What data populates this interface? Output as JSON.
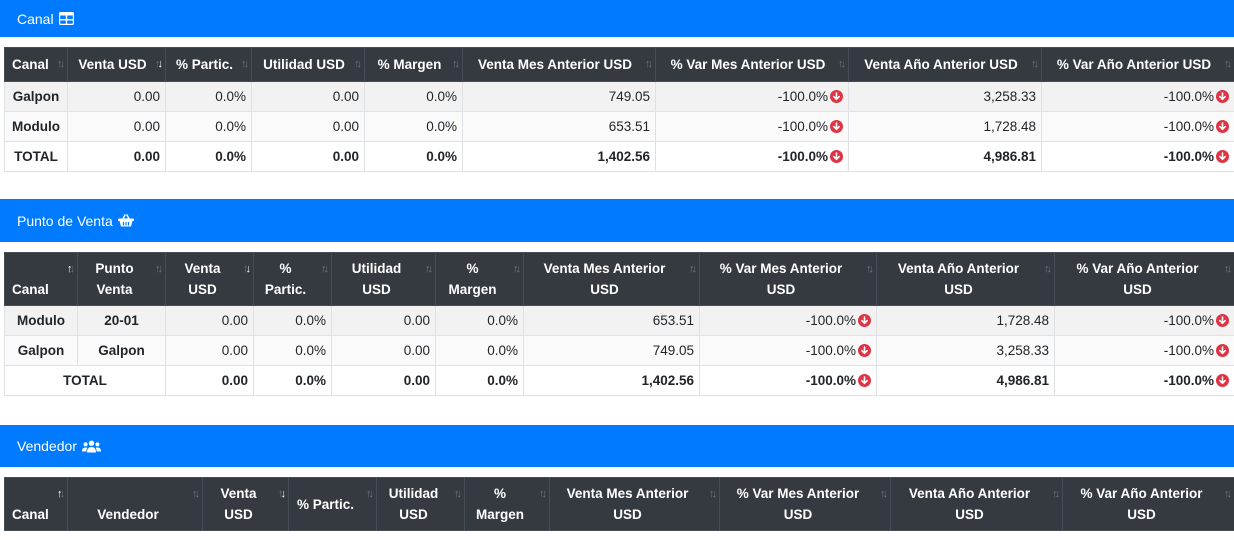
{
  "canal_section": {
    "title": "Canal",
    "icon": "table-icon",
    "headers": [
      "Canal",
      "Venta USD",
      "% Partic.",
      "Utilidad USD",
      "% Margen",
      "Venta Mes Anterior USD",
      "% Var Mes Anterior USD",
      "Venta Año Anterior USD",
      "% Var Año Anterior USD"
    ],
    "rows": [
      [
        "Galpon",
        "0.00",
        "0.0%",
        "0.00",
        "0.0%",
        "749.05",
        "-100.0%",
        "3,258.33",
        "-100.0%"
      ],
      [
        "Modulo",
        "0.00",
        "0.0%",
        "0.00",
        "0.0%",
        "653.51",
        "-100.0%",
        "1,728.48",
        "-100.0%"
      ],
      [
        "TOTAL",
        "0.00",
        "0.0%",
        "0.00",
        "0.0%",
        "1,402.56",
        "-100.0%",
        "4,986.81",
        "-100.0%"
      ]
    ]
  },
  "pdv_section": {
    "title": "Punto de Venta",
    "icon": "shopping-basket-icon",
    "headers": [
      "Canal",
      "Punto Venta",
      "Venta USD",
      "% Partic.",
      "Utilidad USD",
      "% Margen",
      "Venta Mes Anterior USD",
      "% Var Mes Anterior USD",
      "Venta Año Anterior USD",
      "% Var Año Anterior USD"
    ],
    "rows": [
      [
        "Modulo",
        "20-01",
        "0.00",
        "0.0%",
        "0.00",
        "0.0%",
        "653.51",
        "-100.0%",
        "1,728.48",
        "-100.0%"
      ],
      [
        "Galpon",
        "Galpon",
        "0.00",
        "0.0%",
        "0.00",
        "0.0%",
        "749.05",
        "-100.0%",
        "3,258.33",
        "-100.0%"
      ]
    ],
    "total": [
      "TOTAL",
      "0.00",
      "0.0%",
      "0.00",
      "0.0%",
      "1,402.56",
      "-100.0%",
      "4,986.81",
      "-100.0%"
    ]
  },
  "vendedor_section": {
    "title": "Vendedor",
    "icon": "users-icon",
    "headers": [
      "Canal",
      "Vendedor",
      "Venta USD",
      "% Partic.",
      "Utilidad USD",
      "% Margen",
      "Venta Mes Anterior USD",
      "% Var Mes Anterior USD",
      "Venta Año Anterior USD",
      "% Var Año Anterior USD"
    ]
  },
  "colors": {
    "header_blue": "#007bff",
    "thead_dark": "#343a40",
    "down_red": "#dc3545"
  }
}
